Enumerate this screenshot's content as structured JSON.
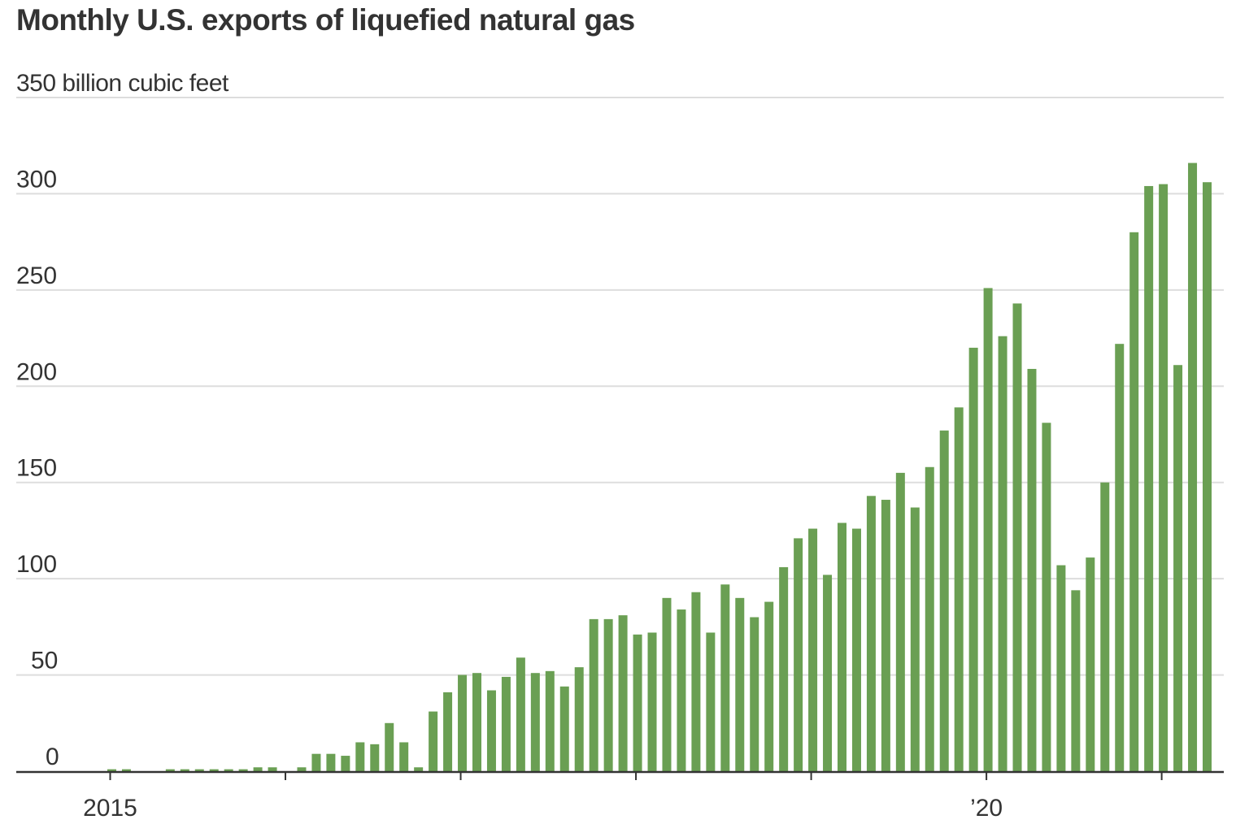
{
  "chart_data": {
    "type": "bar",
    "title": "Monthly U.S. exports of liquefied natural gas",
    "unit_label": "350 billion cubic feet",
    "ylabel": "",
    "xlabel": "",
    "ylim": [
      0,
      350
    ],
    "y_ticks": [
      {
        "value": 0,
        "label": "0"
      },
      {
        "value": 50,
        "label": "50"
      },
      {
        "value": 100,
        "label": "100"
      },
      {
        "value": 150,
        "label": "150"
      },
      {
        "value": 200,
        "label": "200"
      },
      {
        "value": 250,
        "label": "250"
      },
      {
        "value": 300,
        "label": "300"
      }
    ],
    "x_ticks": [
      {
        "date": "2015-01",
        "label": "2015"
      },
      {
        "date": "2016-01",
        "label": ""
      },
      {
        "date": "2017-01",
        "label": ""
      },
      {
        "date": "2018-01",
        "label": ""
      },
      {
        "date": "2019-01",
        "label": ""
      },
      {
        "date": "2020-01",
        "label": "’20"
      },
      {
        "date": "2021-01",
        "label": ""
      }
    ],
    "start_month": "2015-01",
    "values": [
      1,
      1,
      0,
      0,
      1,
      1,
      1,
      1,
      1,
      1,
      2,
      2,
      0,
      2,
      9,
      9,
      8,
      15,
      14,
      25,
      15,
      2,
      31,
      41,
      50,
      51,
      42,
      49,
      59,
      51,
      52,
      44,
      54,
      79,
      79,
      81,
      71,
      72,
      90,
      84,
      93,
      72,
      97,
      90,
      80,
      88,
      106,
      121,
      126,
      102,
      129,
      126,
      143,
      141,
      155,
      137,
      158,
      177,
      189,
      220,
      251,
      226,
      243,
      209,
      181,
      107,
      94,
      111,
      150,
      222,
      280,
      304,
      305,
      211,
      316,
      306
    ],
    "bar_color": "#6a9f53",
    "grid": true,
    "grid_color": "#dddddd",
    "axis_color": "#333333"
  }
}
